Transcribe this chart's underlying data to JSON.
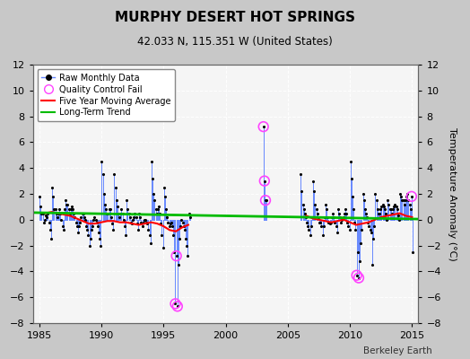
{
  "title": "MURPHY DESERT HOT SPRINGS",
  "subtitle": "42.033 N, 115.351 W (United States)",
  "ylabel": "Temperature Anomaly (°C)",
  "credit": "Berkeley Earth",
  "ylim": [
    -8,
    12
  ],
  "yticks": [
    -8,
    -6,
    -4,
    -2,
    0,
    2,
    4,
    6,
    8,
    10,
    12
  ],
  "xlim": [
    1984.5,
    2015.5
  ],
  "xticks": [
    1985,
    1990,
    1995,
    2000,
    2005,
    2010,
    2015
  ],
  "bg_color": "#c8c8c8",
  "plot_bg_color": "#f5f5f5",
  "raw_line_color": "#6688ff",
  "raw_dot_color": "#000000",
  "qc_fail_color": "#ff44ff",
  "moving_avg_color": "#ff0000",
  "trend_color": "#00bb00",
  "raw_monthly_data": [
    [
      1985.042,
      1.8
    ],
    [
      1985.125,
      1.0
    ],
    [
      1985.208,
      0.5
    ],
    [
      1985.292,
      0.5
    ],
    [
      1985.375,
      -0.2
    ],
    [
      1985.458,
      0.0
    ],
    [
      1985.542,
      0.3
    ],
    [
      1985.625,
      0.2
    ],
    [
      1985.708,
      0.5
    ],
    [
      1985.792,
      -0.2
    ],
    [
      1985.875,
      -0.8
    ],
    [
      1985.958,
      -1.5
    ],
    [
      1986.042,
      2.5
    ],
    [
      1986.125,
      1.8
    ],
    [
      1986.208,
      0.8
    ],
    [
      1986.292,
      0.8
    ],
    [
      1986.375,
      0.5
    ],
    [
      1986.458,
      0.2
    ],
    [
      1986.542,
      0.5
    ],
    [
      1986.625,
      0.8
    ],
    [
      1986.708,
      0.5
    ],
    [
      1986.792,
      0.0
    ],
    [
      1986.875,
      -0.5
    ],
    [
      1986.958,
      -0.8
    ],
    [
      1987.042,
      0.8
    ],
    [
      1987.125,
      1.5
    ],
    [
      1987.208,
      1.2
    ],
    [
      1987.292,
      1.2
    ],
    [
      1987.375,
      0.8
    ],
    [
      1987.458,
      0.5
    ],
    [
      1987.542,
      0.8
    ],
    [
      1987.625,
      1.0
    ],
    [
      1987.708,
      0.8
    ],
    [
      1987.792,
      0.5
    ],
    [
      1987.875,
      0.2
    ],
    [
      1987.958,
      -0.2
    ],
    [
      1988.042,
      -0.5
    ],
    [
      1988.125,
      -1.0
    ],
    [
      1988.208,
      -0.5
    ],
    [
      1988.292,
      -0.2
    ],
    [
      1988.375,
      0.2
    ],
    [
      1988.458,
      0.5
    ],
    [
      1988.542,
      0.5
    ],
    [
      1988.625,
      0.2
    ],
    [
      1988.708,
      0.0
    ],
    [
      1988.792,
      -0.5
    ],
    [
      1988.875,
      -0.8
    ],
    [
      1988.958,
      -1.2
    ],
    [
      1989.042,
      -2.0
    ],
    [
      1989.125,
      -1.5
    ],
    [
      1989.208,
      -0.8
    ],
    [
      1989.292,
      -0.5
    ],
    [
      1989.375,
      0.0
    ],
    [
      1989.458,
      0.2
    ],
    [
      1989.542,
      0.0
    ],
    [
      1989.625,
      -0.2
    ],
    [
      1989.708,
      -0.5
    ],
    [
      1989.792,
      -1.0
    ],
    [
      1989.875,
      -1.5
    ],
    [
      1989.958,
      -2.0
    ],
    [
      1990.042,
      4.5
    ],
    [
      1990.125,
      3.5
    ],
    [
      1990.208,
      2.0
    ],
    [
      1990.292,
      1.2
    ],
    [
      1990.375,
      0.8
    ],
    [
      1990.458,
      0.5
    ],
    [
      1990.542,
      0.5
    ],
    [
      1990.625,
      0.8
    ],
    [
      1990.708,
      0.8
    ],
    [
      1990.792,
      0.2
    ],
    [
      1990.875,
      -0.3
    ],
    [
      1990.958,
      -0.8
    ],
    [
      1991.042,
      3.5
    ],
    [
      1991.125,
      2.5
    ],
    [
      1991.208,
      1.5
    ],
    [
      1991.292,
      1.0
    ],
    [
      1991.375,
      0.5
    ],
    [
      1991.458,
      0.2
    ],
    [
      1991.542,
      0.5
    ],
    [
      1991.625,
      0.8
    ],
    [
      1991.708,
      0.5
    ],
    [
      1991.792,
      0.0
    ],
    [
      1991.875,
      -0.5
    ],
    [
      1991.958,
      -1.2
    ],
    [
      1992.042,
      1.5
    ],
    [
      1992.125,
      0.8
    ],
    [
      1992.208,
      0.5
    ],
    [
      1992.292,
      0.2
    ],
    [
      1992.375,
      -0.2
    ],
    [
      1992.458,
      -0.3
    ],
    [
      1992.542,
      0.0
    ],
    [
      1992.625,
      0.2
    ],
    [
      1992.708,
      0.5
    ],
    [
      1992.792,
      0.2
    ],
    [
      1992.875,
      -0.3
    ],
    [
      1992.958,
      -0.8
    ],
    [
      1993.042,
      0.5
    ],
    [
      1993.125,
      0.2
    ],
    [
      1993.208,
      -0.2
    ],
    [
      1993.292,
      -0.5
    ],
    [
      1993.375,
      -0.2
    ],
    [
      1993.458,
      0.0
    ],
    [
      1993.542,
      0.0
    ],
    [
      1993.625,
      -0.2
    ],
    [
      1993.708,
      -0.3
    ],
    [
      1993.792,
      -0.8
    ],
    [
      1993.875,
      -1.2
    ],
    [
      1993.958,
      -1.8
    ],
    [
      1994.042,
      4.5
    ],
    [
      1994.125,
      3.2
    ],
    [
      1994.208,
      2.0
    ],
    [
      1994.292,
      1.5
    ],
    [
      1994.375,
      0.8
    ],
    [
      1994.458,
      0.5
    ],
    [
      1994.542,
      0.8
    ],
    [
      1994.625,
      1.0
    ],
    [
      1994.708,
      0.5
    ],
    [
      1994.792,
      -0.3
    ],
    [
      1994.875,
      -1.2
    ],
    [
      1994.958,
      -2.2
    ],
    [
      1995.042,
      2.5
    ],
    [
      1995.125,
      1.8
    ],
    [
      1995.208,
      0.8
    ],
    [
      1995.292,
      0.2
    ],
    [
      1995.375,
      -0.2
    ],
    [
      1995.458,
      -0.5
    ],
    [
      1995.542,
      -0.3
    ],
    [
      1995.625,
      -0.2
    ],
    [
      1995.708,
      -0.5
    ],
    [
      1995.792,
      -1.2
    ],
    [
      1995.875,
      -2.5
    ],
    [
      1995.958,
      -6.5
    ],
    [
      1996.042,
      -2.8
    ],
    [
      1996.125,
      -6.7
    ],
    [
      1996.208,
      -3.5
    ],
    [
      1996.292,
      -1.5
    ],
    [
      1996.375,
      -0.5
    ],
    [
      1996.458,
      0.0
    ],
    [
      1996.542,
      -0.2
    ],
    [
      1996.625,
      -0.5
    ],
    [
      1996.708,
      -0.8
    ],
    [
      1996.792,
      -1.5
    ],
    [
      1996.875,
      -2.0
    ],
    [
      1996.958,
      -2.8
    ],
    [
      1997.042,
      0.5
    ],
    [
      1997.125,
      0.2
    ],
    [
      2003.042,
      7.2
    ],
    [
      2003.125,
      3.0
    ],
    [
      2003.208,
      1.5
    ],
    [
      2003.292,
      1.5
    ],
    [
      2006.042,
      3.5
    ],
    [
      2006.125,
      2.2
    ],
    [
      2006.208,
      1.2
    ],
    [
      2006.292,
      0.8
    ],
    [
      2006.375,
      0.5
    ],
    [
      2006.458,
      0.2
    ],
    [
      2006.542,
      -0.2
    ],
    [
      2006.625,
      -0.5
    ],
    [
      2006.708,
      -0.8
    ],
    [
      2006.792,
      -1.2
    ],
    [
      2006.875,
      -0.5
    ],
    [
      2006.958,
      0.2
    ],
    [
      2007.042,
      3.0
    ],
    [
      2007.125,
      2.2
    ],
    [
      2007.208,
      1.2
    ],
    [
      2007.292,
      0.8
    ],
    [
      2007.375,
      0.5
    ],
    [
      2007.458,
      0.2
    ],
    [
      2007.542,
      -0.2
    ],
    [
      2007.625,
      -0.2
    ],
    [
      2007.708,
      -0.5
    ],
    [
      2007.792,
      -1.2
    ],
    [
      2007.875,
      -0.5
    ],
    [
      2007.958,
      0.2
    ],
    [
      2008.042,
      1.2
    ],
    [
      2008.125,
      0.8
    ],
    [
      2008.208,
      0.2
    ],
    [
      2008.292,
      -0.2
    ],
    [
      2008.375,
      -0.3
    ],
    [
      2008.458,
      -0.2
    ],
    [
      2008.542,
      0.2
    ],
    [
      2008.625,
      0.5
    ],
    [
      2008.708,
      0.2
    ],
    [
      2008.792,
      -0.2
    ],
    [
      2008.875,
      -0.5
    ],
    [
      2008.958,
      -1.0
    ],
    [
      2009.042,
      0.8
    ],
    [
      2009.125,
      0.5
    ],
    [
      2009.208,
      0.2
    ],
    [
      2009.292,
      -0.2
    ],
    [
      2009.375,
      0.0
    ],
    [
      2009.458,
      0.2
    ],
    [
      2009.542,
      0.5
    ],
    [
      2009.625,
      0.8
    ],
    [
      2009.708,
      0.5
    ],
    [
      2009.792,
      -0.2
    ],
    [
      2009.875,
      -0.5
    ],
    [
      2009.958,
      -0.8
    ],
    [
      2010.042,
      4.5
    ],
    [
      2010.125,
      3.2
    ],
    [
      2010.208,
      1.8
    ],
    [
      2010.292,
      0.8
    ],
    [
      2010.375,
      -0.2
    ],
    [
      2010.458,
      -0.8
    ],
    [
      2010.542,
      -4.3
    ],
    [
      2010.625,
      -2.5
    ],
    [
      2010.708,
      -4.5
    ],
    [
      2010.792,
      -3.2
    ],
    [
      2010.875,
      -1.8
    ],
    [
      2010.958,
      -0.8
    ],
    [
      2011.042,
      2.0
    ],
    [
      2011.125,
      1.5
    ],
    [
      2011.208,
      0.8
    ],
    [
      2011.292,
      0.5
    ],
    [
      2011.375,
      0.2
    ],
    [
      2011.458,
      -0.2
    ],
    [
      2011.542,
      -0.5
    ],
    [
      2011.625,
      -0.8
    ],
    [
      2011.708,
      -1.0
    ],
    [
      2011.792,
      -3.5
    ],
    [
      2011.875,
      -1.5
    ],
    [
      2011.958,
      -0.5
    ],
    [
      2012.042,
      2.0
    ],
    [
      2012.125,
      1.5
    ],
    [
      2012.208,
      0.8
    ],
    [
      2012.292,
      0.5
    ],
    [
      2012.375,
      0.5
    ],
    [
      2012.458,
      0.8
    ],
    [
      2012.542,
      1.0
    ],
    [
      2012.625,
      1.2
    ],
    [
      2012.708,
      1.0
    ],
    [
      2012.792,
      0.8
    ],
    [
      2012.875,
      0.5
    ],
    [
      2012.958,
      0.0
    ],
    [
      2013.042,
      1.5
    ],
    [
      2013.125,
      1.2
    ],
    [
      2013.208,
      0.8
    ],
    [
      2013.292,
      0.8
    ],
    [
      2013.375,
      0.5
    ],
    [
      2013.458,
      0.8
    ],
    [
      2013.542,
      1.0
    ],
    [
      2013.625,
      1.2
    ],
    [
      2013.708,
      1.0
    ],
    [
      2013.792,
      0.8
    ],
    [
      2013.875,
      0.3
    ],
    [
      2013.958,
      0.0
    ],
    [
      2014.042,
      2.0
    ],
    [
      2014.125,
      1.8
    ],
    [
      2014.208,
      1.5
    ],
    [
      2014.292,
      1.5
    ],
    [
      2014.375,
      1.2
    ],
    [
      2014.458,
      1.5
    ],
    [
      2014.542,
      1.8
    ],
    [
      2014.625,
      2.0
    ],
    [
      2014.708,
      1.5
    ],
    [
      2014.792,
      1.2
    ],
    [
      2014.875,
      0.8
    ],
    [
      2014.958,
      1.8
    ],
    [
      2015.042,
      -2.5
    ]
  ],
  "qc_fail_points": [
    [
      1995.958,
      -6.5
    ],
    [
      1996.042,
      -2.8
    ],
    [
      1996.125,
      -6.7
    ],
    [
      2003.042,
      7.2
    ],
    [
      2003.125,
      3.0
    ],
    [
      2003.208,
      1.5
    ],
    [
      2010.542,
      -4.3
    ],
    [
      2010.708,
      -4.5
    ],
    [
      2014.958,
      1.8
    ]
  ],
  "moving_avg_seg1": [
    [
      1985.5,
      0.5
    ],
    [
      1986.0,
      0.6
    ],
    [
      1986.5,
      0.5
    ],
    [
      1987.0,
      0.4
    ],
    [
      1987.5,
      0.3
    ],
    [
      1988.0,
      0.1
    ],
    [
      1988.5,
      -0.1
    ],
    [
      1989.0,
      -0.3
    ],
    [
      1989.5,
      -0.3
    ],
    [
      1990.0,
      -0.2
    ],
    [
      1990.5,
      -0.1
    ],
    [
      1991.0,
      -0.1
    ],
    [
      1991.5,
      -0.2
    ],
    [
      1992.0,
      -0.2
    ],
    [
      1992.5,
      -0.3
    ],
    [
      1993.0,
      -0.4
    ],
    [
      1993.5,
      -0.3
    ],
    [
      1994.0,
      -0.2
    ],
    [
      1994.5,
      -0.3
    ],
    [
      1995.0,
      -0.5
    ],
    [
      1995.5,
      -0.8
    ],
    [
      1996.0,
      -0.9
    ],
    [
      1996.5,
      -0.6
    ],
    [
      1997.0,
      -0.4
    ]
  ],
  "moving_avg_seg2": [
    [
      2006.5,
      0.3
    ],
    [
      2007.0,
      0.1
    ],
    [
      2007.5,
      0.0
    ],
    [
      2008.0,
      -0.1
    ],
    [
      2008.5,
      -0.2
    ],
    [
      2009.0,
      -0.1
    ],
    [
      2009.5,
      0.0
    ],
    [
      2010.0,
      -0.2
    ],
    [
      2010.5,
      -0.4
    ],
    [
      2011.0,
      -0.3
    ],
    [
      2011.5,
      -0.2
    ],
    [
      2012.0,
      0.0
    ],
    [
      2012.5,
      0.2
    ],
    [
      2013.0,
      0.3
    ],
    [
      2013.5,
      0.4
    ],
    [
      2014.0,
      0.5
    ],
    [
      2014.5,
      0.3
    ],
    [
      2015.0,
      0.2
    ]
  ],
  "trend_x": [
    1984.5,
    2015.5
  ],
  "trend_y": [
    0.55,
    0.05
  ]
}
